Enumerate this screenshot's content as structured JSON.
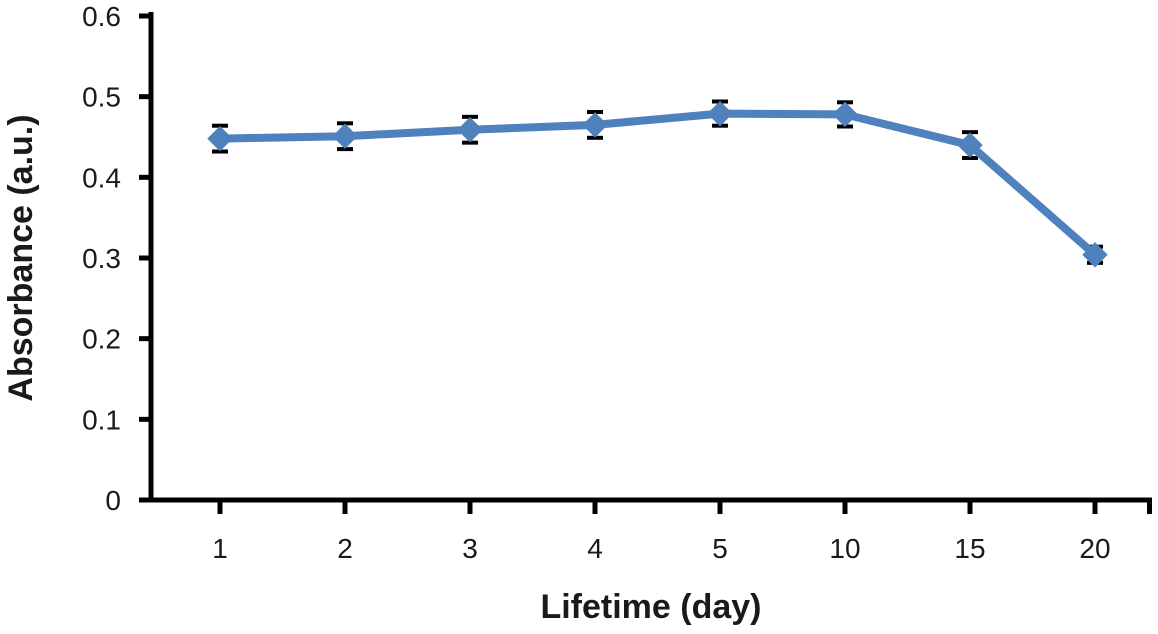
{
  "figure": {
    "background": "#ffffff"
  },
  "chart_data": {
    "type": "line",
    "title": "",
    "xlabel": "Lifetime (day)",
    "ylabel": "Absorbance (a.u.)",
    "categories": [
      "1",
      "2",
      "3",
      "4",
      "5",
      "10",
      "15",
      "20"
    ],
    "series": [
      {
        "values": [
          0.448,
          0.451,
          0.459,
          0.465,
          0.479,
          0.478,
          0.44,
          0.304
        ],
        "errors": [
          0.016,
          0.016,
          0.016,
          0.016,
          0.015,
          0.015,
          0.016,
          0.01
        ],
        "color": "#4f81bd",
        "marker": "diamond",
        "line_width": 8
      }
    ],
    "ylim": [
      0,
      0.6
    ],
    "y_ticks": [
      0,
      0.1,
      0.2,
      0.3,
      0.4,
      0.5,
      0.6
    ],
    "y_tick_labels": [
      "0",
      "0.1",
      "0.2",
      "0.3",
      "0.4",
      "0.5",
      "0.6"
    ],
    "grid": false,
    "legend": false,
    "axis_color": "#000000",
    "error_bar_color": "#000000",
    "text_color": "#1a1a1a"
  }
}
